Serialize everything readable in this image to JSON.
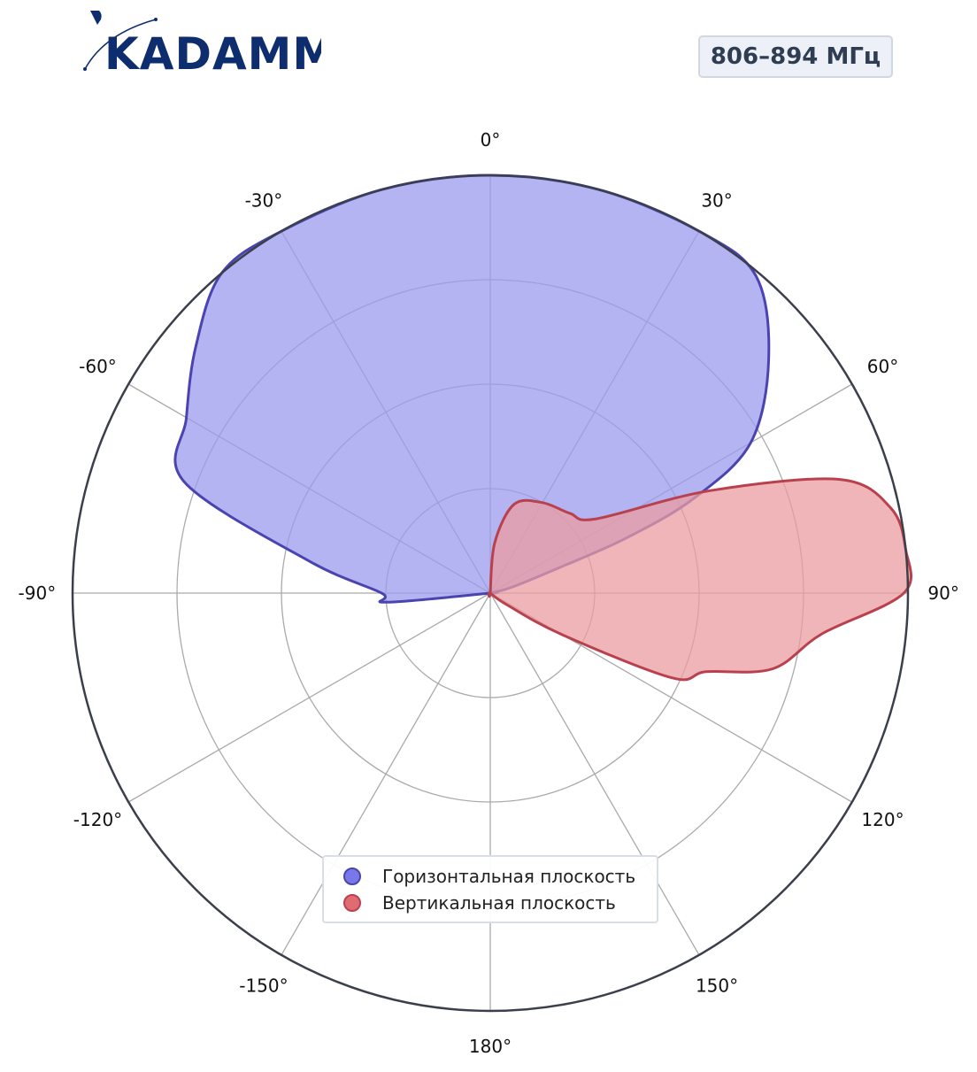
{
  "header": {
    "logo_text": "KADAMM",
    "frequency_badge": "806–894 МГц"
  },
  "colors": {
    "horizontal_fill": "#9b9bee",
    "horizontal_line": "#4a44b0",
    "vertical_fill": "#eb9ca2",
    "vertical_line": "#b9414e",
    "grid": "#aaaaaa",
    "outer_ring": "#3a3f4b",
    "logo": "#0d2d6e",
    "badge_bg": "#edf1f7"
  },
  "chart_data": {
    "type": "polar-area",
    "angle_unit": "deg",
    "angle_ticks": [
      "0°",
      "30°",
      "60°",
      "90°",
      "120°",
      "150°",
      "180°",
      "-150°",
      "-120°",
      "-90°",
      "-60°",
      "-30°"
    ],
    "radial_range": [
      0,
      1
    ],
    "radial_grid": [
      0.25,
      0.5,
      0.75,
      1.0
    ],
    "grid": true,
    "legend_position": "bottom-center",
    "series": [
      {
        "name": "Горизонтальная плоскость",
        "color": "#9b9bee",
        "line_color": "#4a44b0",
        "points": [
          {
            "angle": -90,
            "r": 0.26
          },
          {
            "angle": -80,
            "r": 0.44
          },
          {
            "angle": -70,
            "r": 0.78
          },
          {
            "angle": -60,
            "r": 0.84
          },
          {
            "angle": -50,
            "r": 0.92
          },
          {
            "angle": -40,
            "r": 1.0
          },
          {
            "angle": -30,
            "r": 1.0
          },
          {
            "angle": -15,
            "r": 1.0
          },
          {
            "angle": 0,
            "r": 1.0
          },
          {
            "angle": 15,
            "r": 1.0
          },
          {
            "angle": 30,
            "r": 1.0
          },
          {
            "angle": 40,
            "r": 0.99
          },
          {
            "angle": 50,
            "r": 0.87
          },
          {
            "angle": 60,
            "r": 0.72
          },
          {
            "angle": 65,
            "r": 0.54
          },
          {
            "angle": 68,
            "r": 0.35
          },
          {
            "angle": 70,
            "r": 0.16
          },
          {
            "angle": 75,
            "r": 0.05
          },
          {
            "angle": 80,
            "r": 0.0
          },
          {
            "angle": 180,
            "r": 0.0
          },
          {
            "angle": -95,
            "r": 0.25
          }
        ]
      },
      {
        "name": "Вертикальная плоскость",
        "color": "#eb9ca2",
        "line_color": "#b9414e",
        "points": [
          {
            "angle": 0,
            "r": 0.0
          },
          {
            "angle": 5,
            "r": 0.12
          },
          {
            "angle": 15,
            "r": 0.22
          },
          {
            "angle": 30,
            "r": 0.25
          },
          {
            "angle": 45,
            "r": 0.27
          },
          {
            "angle": 55,
            "r": 0.31
          },
          {
            "angle": 65,
            "r": 0.58
          },
          {
            "angle": 72,
            "r": 0.88
          },
          {
            "angle": 78,
            "r": 0.98
          },
          {
            "angle": 84,
            "r": 1.0
          },
          {
            "angle": 90,
            "r": 0.99
          },
          {
            "angle": 97,
            "r": 0.8
          },
          {
            "angle": 105,
            "r": 0.7
          },
          {
            "angle": 110,
            "r": 0.55
          },
          {
            "angle": 115,
            "r": 0.48
          },
          {
            "angle": 120,
            "r": 0.2
          },
          {
            "angle": 125,
            "r": 0.05
          },
          {
            "angle": 130,
            "r": 0.0
          }
        ]
      }
    ]
  }
}
